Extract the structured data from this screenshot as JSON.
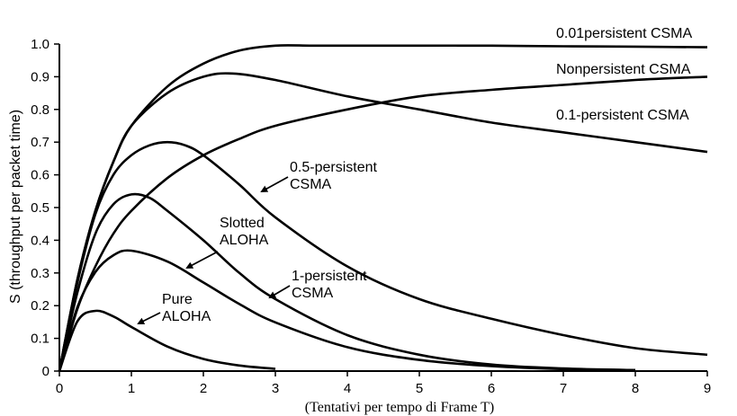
{
  "chart_data": {
    "type": "line",
    "xlabel": "(Tentativi per tempo di Frame T)",
    "ylabel": "S (throughput per packet time)",
    "xlim": [
      0,
      9
    ],
    "ylim": [
      0,
      1.0
    ],
    "xticks": [
      "0",
      "1",
      "2",
      "3",
      "4",
      "5",
      "6",
      "7",
      "8",
      "9"
    ],
    "yticks": [
      "0",
      "0.1",
      "0.2",
      "0.3",
      "0.4",
      "0.5",
      "0.6",
      "0.7",
      "0.8",
      "0.9",
      "1.0"
    ],
    "grid": false,
    "line_color": "#000000",
    "series": [
      {
        "name": "Pure ALOHA",
        "label_lines": [
          "Pure",
          "ALOHA"
        ],
        "x": [
          0,
          0.25,
          0.5,
          0.75,
          1,
          1.5,
          2,
          2.5,
          3
        ],
        "y": [
          0,
          0.152,
          0.184,
          0.167,
          0.135,
          0.075,
          0.037,
          0.017,
          0.007
        ]
      },
      {
        "name": "Slotted ALOHA",
        "label_lines": [
          "Slotted",
          "ALOHA"
        ],
        "x": [
          0,
          0.25,
          0.5,
          0.75,
          1,
          1.5,
          2,
          2.5,
          3,
          4,
          5,
          6,
          7,
          8
        ],
        "y": [
          0,
          0.195,
          0.303,
          0.354,
          0.368,
          0.335,
          0.271,
          0.205,
          0.149,
          0.073,
          0.034,
          0.015,
          0.006,
          0.003
        ]
      },
      {
        "name": "1-persistent CSMA",
        "label_lines": [
          "1-persistent",
          "CSMA"
        ],
        "x": [
          0,
          0.25,
          0.5,
          0.75,
          1,
          1.25,
          1.5,
          2,
          2.5,
          3,
          4,
          5,
          6,
          7,
          8
        ],
        "y": [
          0,
          0.24,
          0.42,
          0.51,
          0.54,
          0.53,
          0.49,
          0.4,
          0.3,
          0.22,
          0.11,
          0.05,
          0.02,
          0.008,
          0.003
        ]
      },
      {
        "name": "0.5-persistent CSMA",
        "label_lines": [
          "0.5-persistent",
          "CSMA"
        ],
        "x": [
          0,
          0.25,
          0.5,
          0.75,
          1,
          1.25,
          1.5,
          1.75,
          2,
          2.5,
          3,
          4,
          5,
          6,
          7,
          8,
          9
        ],
        "y": [
          0,
          0.27,
          0.48,
          0.6,
          0.66,
          0.69,
          0.7,
          0.69,
          0.66,
          0.57,
          0.47,
          0.32,
          0.22,
          0.16,
          0.11,
          0.07,
          0.05
        ]
      },
      {
        "name": "Nonpersistent CSMA",
        "label_lines": [
          "Nonpersistent CSMA"
        ],
        "x": [
          0,
          0.25,
          0.5,
          0.75,
          1,
          1.5,
          2,
          2.5,
          3,
          4,
          5,
          6,
          7,
          8,
          9
        ],
        "y": [
          0,
          0.19,
          0.32,
          0.42,
          0.49,
          0.59,
          0.66,
          0.71,
          0.75,
          0.8,
          0.84,
          0.86,
          0.875,
          0.89,
          0.9
        ]
      },
      {
        "name": "0.1-persistent CSMA",
        "label_lines": [
          "0.1-persistent CSMA"
        ],
        "x": [
          0,
          0.25,
          0.5,
          0.75,
          1,
          1.5,
          2,
          2.4,
          3,
          4,
          5,
          6,
          7,
          8,
          9
        ],
        "y": [
          0,
          0.28,
          0.49,
          0.64,
          0.75,
          0.85,
          0.9,
          0.91,
          0.89,
          0.84,
          0.8,
          0.76,
          0.73,
          0.7,
          0.67
        ]
      },
      {
        "name": "0.01persistent CSMA",
        "label_lines": [
          "0.01persistent CSMA"
        ],
        "x": [
          0,
          0.25,
          0.5,
          0.75,
          1,
          1.5,
          2,
          2.5,
          3,
          3.5,
          4,
          5,
          6,
          7,
          8,
          9
        ],
        "y": [
          0,
          0.28,
          0.49,
          0.64,
          0.75,
          0.87,
          0.94,
          0.98,
          0.995,
          0.995,
          0.995,
          0.995,
          0.995,
          0.993,
          0.992,
          0.99
        ]
      }
    ]
  }
}
